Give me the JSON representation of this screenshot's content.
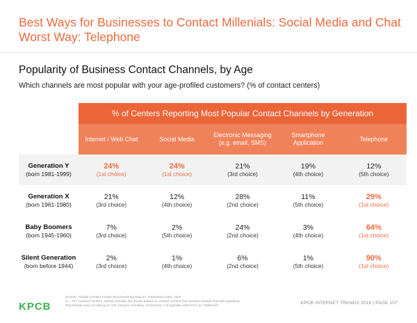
{
  "slide": {
    "title": "Best Ways for Businesses to Contact Millenials: Social Media and Chat Worst Way: Telephone"
  },
  "chart_data": {
    "type": "table",
    "title": "Popularity of Business Contact Channels, by Age",
    "subtitle": "Which channels are most popular with your age-profiled customers? (% of contact centers)",
    "header": "% of Centers Reporting Most Popular Contact Channels by Generation",
    "columns": [
      "Internet / Web Chat",
      "Social Media",
      "Electronic Messaging (e.g. email, SMS)",
      "Smartphone Application",
      "Telephone"
    ],
    "rows": [
      {
        "generation": "Generation Y",
        "born": "(born 1981-1999)",
        "cells": [
          {
            "value": "24%",
            "choice": "(1st choice)",
            "highlight": true
          },
          {
            "value": "24%",
            "choice": "(1st choice)",
            "highlight": true
          },
          {
            "value": "21%",
            "choice": "(3rd choice)",
            "highlight": false
          },
          {
            "value": "19%",
            "choice": "(4th choice)",
            "highlight": false
          },
          {
            "value": "12%",
            "choice": "(5th choice)",
            "highlight": false
          }
        ]
      },
      {
        "generation": "Generation X",
        "born": "(born 1961-1980)",
        "cells": [
          {
            "value": "21%",
            "choice": "(3rd choice)",
            "highlight": false
          },
          {
            "value": "12%",
            "choice": "(4th choice)",
            "highlight": false
          },
          {
            "value": "28%",
            "choice": "(2nd choice)",
            "highlight": false
          },
          {
            "value": "11%",
            "choice": "(5th choice)",
            "highlight": false
          },
          {
            "value": "29%",
            "choice": "(1st choice)",
            "highlight": true
          }
        ]
      },
      {
        "generation": "Baby Boomers",
        "born": "(born 1945-1960)",
        "cells": [
          {
            "value": "7%",
            "choice": "(3rd choice)",
            "highlight": false
          },
          {
            "value": "2%",
            "choice": "(5th choice)",
            "highlight": false
          },
          {
            "value": "24%",
            "choice": "(2nd choice)",
            "highlight": false
          },
          {
            "value": "3%",
            "choice": "(4th choice)",
            "highlight": false
          },
          {
            "value": "64%",
            "choice": "(1st choice)",
            "highlight": true
          }
        ]
      },
      {
        "generation": "Silent Generation",
        "born": "(born before 1944)",
        "cells": [
          {
            "value": "2%",
            "choice": "(3rd choice)",
            "highlight": false
          },
          {
            "value": "1%",
            "choice": "(4th choice)",
            "highlight": false
          },
          {
            "value": "6%",
            "choice": "(2nd choice)",
            "highlight": false
          },
          {
            "value": "1%",
            "choice": "(5th choice)",
            "highlight": false
          },
          {
            "value": "90%",
            "choice": "(1st choice)",
            "highlight": true
          }
        ]
      }
    ],
    "colors": {
      "accent": "#ec6a3c",
      "header_band": "#ec6538",
      "column_band": "#f0825a",
      "shaded_row": "#f2f2f2"
    }
  },
  "footer": {
    "logo": "KPCB",
    "source_lines": [
      "Source: \"Global Contact Center Benchmarking Report\", Dimension Data, 2016",
      "N = 717 Contact Centers, Global. Results are shown based on contact centers that actively tracked channel popularity.",
      "Percentage may not add up to 100 owing to rounding. Generation Y is typically referred to as \"Millenials\"."
    ],
    "page": "KPCB INTERNET TRENDS 2016 | PAGE 107"
  }
}
